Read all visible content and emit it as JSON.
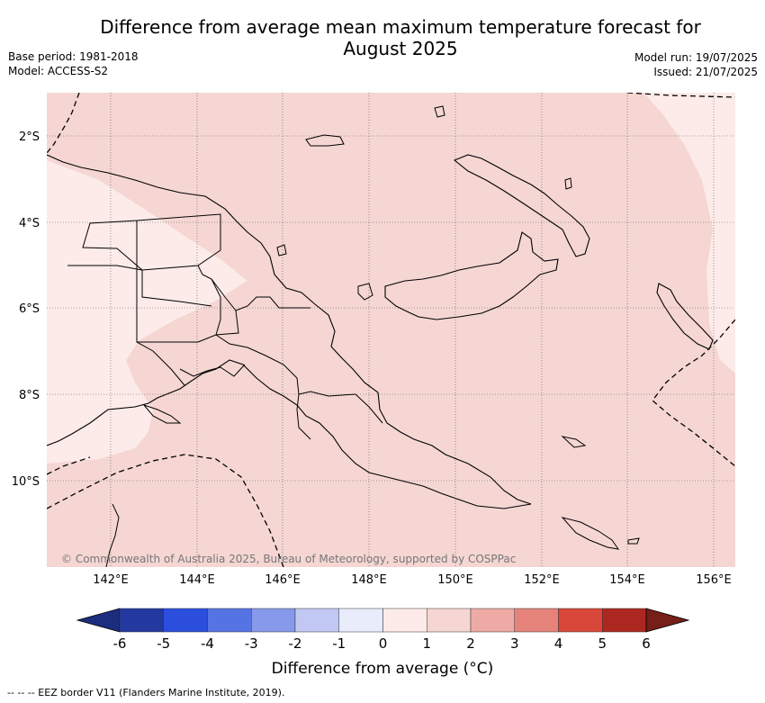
{
  "header": {
    "title_line1": "Difference from average mean maximum temperature forecast for",
    "title_line2": "August 2025",
    "base_period": "Base period: 1981-2018",
    "model": "Model: ACCESS-S2",
    "model_run": "Model run: 19/07/2025",
    "issued": "Issued: 21/07/2025"
  },
  "map": {
    "lat_labels": [
      "2°S",
      "4°S",
      "6°S",
      "8°S",
      "10°S"
    ],
    "lon_labels": [
      "142°E",
      "144°E",
      "146°E",
      "148°E",
      "150°E",
      "152°E",
      "154°E",
      "156°E"
    ],
    "copyright": "© Commonwealth of Australia 2025, Bureau of Meteorology, supported by COSPPac",
    "colors": {
      "ocean_main": "#f5d6d3",
      "light_anomaly": "#fcebe8",
      "gridline": "#555555",
      "coast": "#000000"
    }
  },
  "colorbar": {
    "ticks": [
      "-6",
      "-5",
      "-4",
      "-3",
      "-2",
      "-1",
      "0",
      "1",
      "2",
      "3",
      "4",
      "5",
      "6"
    ],
    "colors": [
      "#23399f",
      "#2b4edc",
      "#5573e3",
      "#8799ea",
      "#c1c8f3",
      "#e9ecfa",
      "#fcebe8",
      "#f5d6d3",
      "#eeaba6",
      "#e5837b",
      "#d9473b",
      "#ad2721"
    ],
    "extend_low_color": "#1c2d7e",
    "extend_high_color": "#761e18",
    "title": "Difference from average (°C)"
  },
  "footnote": "-- -- -- EEZ border V11 (Flanders Marine Institute, 2019)."
}
